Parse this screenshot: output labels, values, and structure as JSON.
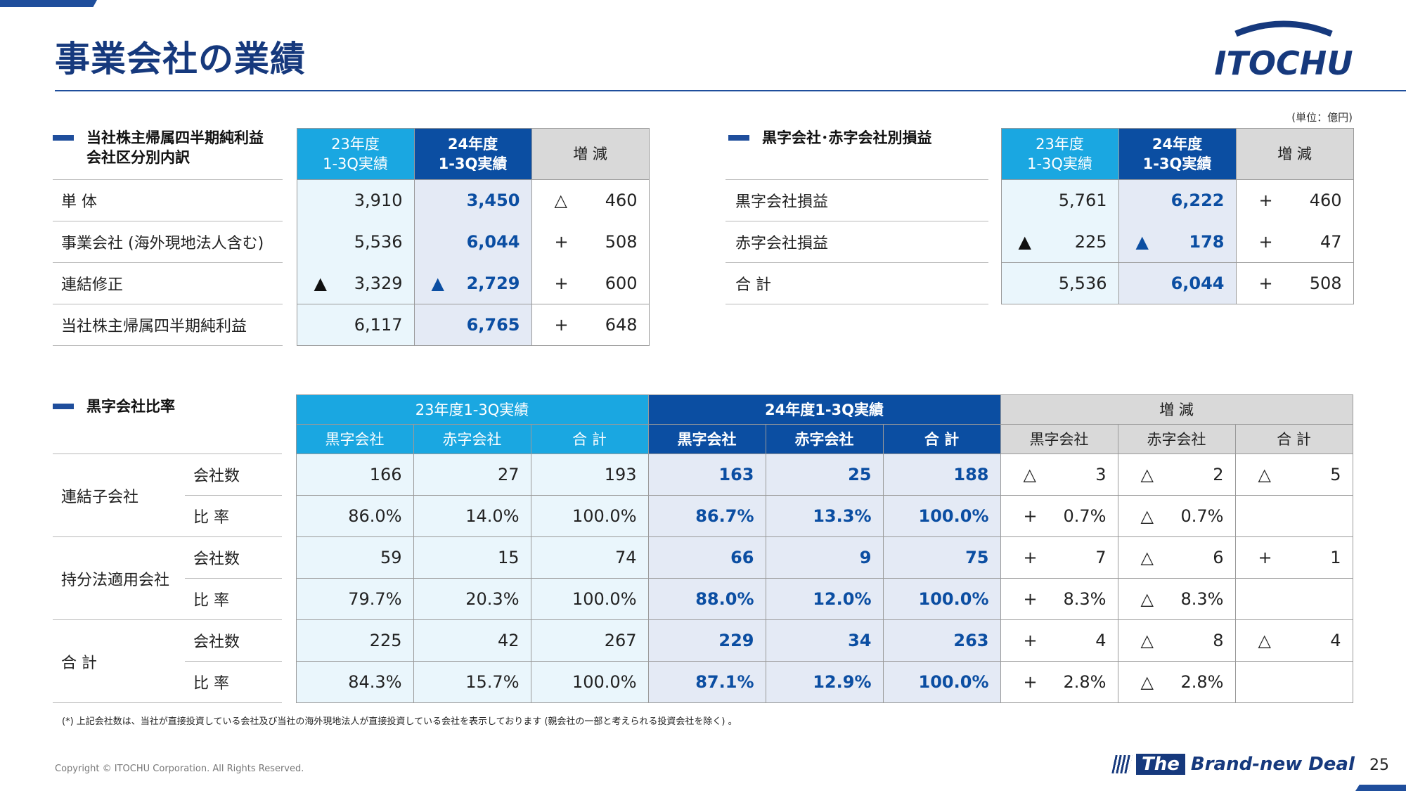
{
  "page": {
    "title": "事業会社の業績",
    "unit": "(単位：億円)",
    "logo_text": "ITOCHU",
    "footnote": "(*) 上記会社数は、当社が直接投資している会社及び当社の海外現地法人が直接投資している会社を表示しております (親会社の一部と考えられる投資会社を除く) 。",
    "copyright": "Copyright © ITOCHU Corporation. All Rights Reserved.",
    "brand_the": "The",
    "brand_rest": "Brand-new Deal",
    "page_number": "25",
    "colors": {
      "primary_dark": "#0b4ea2",
      "primary_light": "#1aa7e1",
      "title": "#16397d"
    }
  },
  "t1": {
    "title_line1": "当社株主帰属四半期純利益",
    "title_line2": "会社区分別内訳",
    "h23_1": "23年度",
    "h23_2": "1-3Q実績",
    "h24_1": "24年度",
    "h24_2": "1-3Q実績",
    "hdd": "増 減",
    "rows": [
      {
        "label": "単 体",
        "t23": "",
        "v23": "3,910",
        "t24": "",
        "v24": "3,450",
        "sign": "△",
        "diff": "460"
      },
      {
        "label": "事業会社 (海外現地法人含む)",
        "t23": "",
        "v23": "5,536",
        "t24": "",
        "v24": "6,044",
        "sign": "+",
        "diff": "508"
      },
      {
        "label": "連結修正",
        "t23": "▲",
        "v23": "3,329",
        "t24": "▲",
        "v24": "2,729",
        "sign": "+",
        "diff": "600"
      },
      {
        "label": "当社株主帰属四半期純利益",
        "t23": "",
        "v23": "6,117",
        "t24": "",
        "v24": "6,765",
        "sign": "+",
        "diff": "648"
      }
    ]
  },
  "t2": {
    "title": "黒字会社･赤字会社別損益",
    "h23_1": "23年度",
    "h23_2": "1-3Q実績",
    "h24_1": "24年度",
    "h24_2": "1-3Q実績",
    "hdd": "増 減",
    "rows": [
      {
        "label": "黒字会社損益",
        "t23": "",
        "v23": "5,761",
        "t24": "",
        "v24": "6,222",
        "sign": "+",
        "diff": "460"
      },
      {
        "label": "赤字会社損益",
        "t23": "▲",
        "v23": "225",
        "t24": "▲",
        "v24": "178",
        "sign": "+",
        "diff": "47"
      },
      {
        "label": "合 計",
        "t23": "",
        "v23": "5,536",
        "t24": "",
        "v24": "6,044",
        "sign": "+",
        "diff": "508"
      }
    ]
  },
  "t3": {
    "title": "黒字会社比率",
    "h23": "23年度1-3Q実績",
    "h24": "24年度1-3Q実績",
    "hdd": "増 減",
    "sub_black": "黒字会社",
    "sub_red": "赤字会社",
    "sub_total": "合 計",
    "groups": [
      {
        "label": "連結子会社",
        "rows": [
          {
            "sub": "会社数",
            "v23": [
              "166",
              "27",
              "193"
            ],
            "v24": [
              "163",
              "25",
              "188"
            ],
            "d": [
              [
                "△",
                "3"
              ],
              [
                "△",
                "2"
              ],
              [
                "△",
                "5"
              ]
            ]
          },
          {
            "sub": "比 率",
            "v23": [
              "86.0%",
              "14.0%",
              "100.0%"
            ],
            "v24": [
              "86.7%",
              "13.3%",
              "100.0%"
            ],
            "d": [
              [
                "+",
                "0.7%"
              ],
              [
                "△",
                "0.7%"
              ],
              [
                "",
                ""
              ]
            ]
          }
        ]
      },
      {
        "label": "持分法適用会社",
        "rows": [
          {
            "sub": "会社数",
            "v23": [
              "59",
              "15",
              "74"
            ],
            "v24": [
              "66",
              "9",
              "75"
            ],
            "d": [
              [
                "+",
                "7"
              ],
              [
                "△",
                "6"
              ],
              [
                "+",
                "1"
              ]
            ]
          },
          {
            "sub": "比 率",
            "v23": [
              "79.7%",
              "20.3%",
              "100.0%"
            ],
            "v24": [
              "88.0%",
              "12.0%",
              "100.0%"
            ],
            "d": [
              [
                "+",
                "8.3%"
              ],
              [
                "△",
                "8.3%"
              ],
              [
                "",
                ""
              ]
            ]
          }
        ]
      },
      {
        "label": "合 計",
        "rows": [
          {
            "sub": "会社数",
            "v23": [
              "225",
              "42",
              "267"
            ],
            "v24": [
              "229",
              "34",
              "263"
            ],
            "d": [
              [
                "+",
                "4"
              ],
              [
                "△",
                "8"
              ],
              [
                "△",
                "4"
              ]
            ]
          },
          {
            "sub": "比 率",
            "v23": [
              "84.3%",
              "15.7%",
              "100.0%"
            ],
            "v24": [
              "87.1%",
              "12.9%",
              "100.0%"
            ],
            "d": [
              [
                "+",
                "2.8%"
              ],
              [
                "△",
                "2.8%"
              ],
              [
                "",
                ""
              ]
            ]
          }
        ]
      }
    ]
  }
}
